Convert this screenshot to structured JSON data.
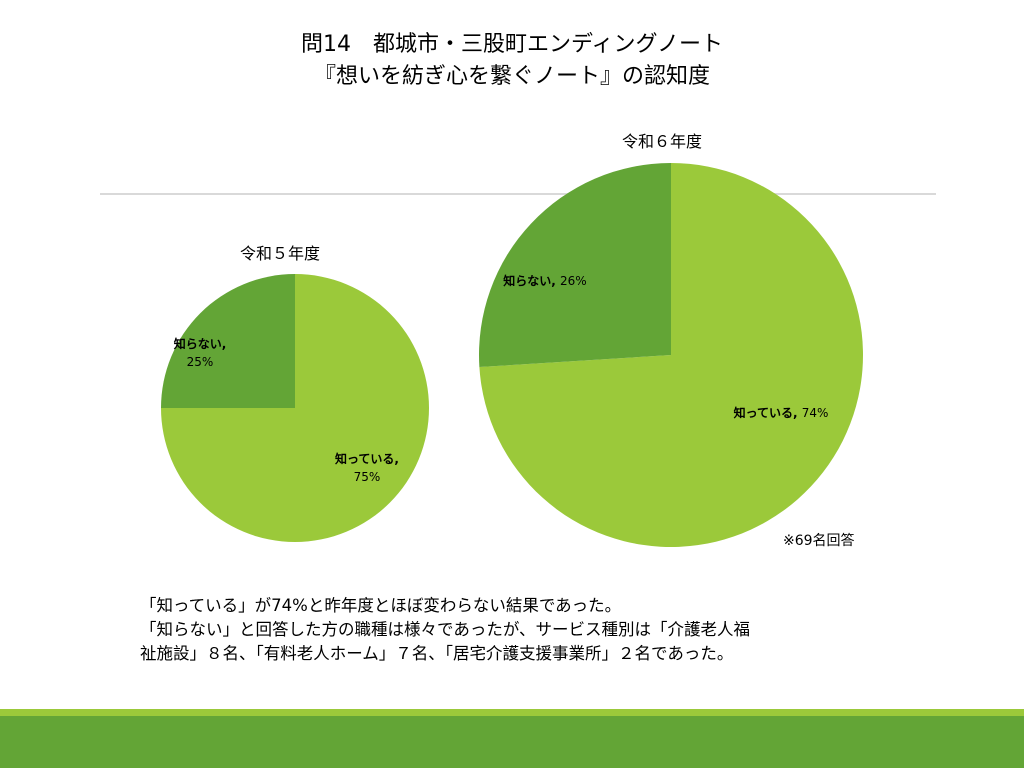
{
  "title": {
    "line1": "問14　都城市・三股町エンディングノート",
    "line2": "『想いを紡ぎ心を繋ぐノート』の認知度"
  },
  "colors": {
    "known": "#9bc93a",
    "unknown": "#63a536"
  },
  "chart_data": [
    {
      "type": "pie",
      "title": "令和５年度",
      "labels": [
        "知っている",
        "知らない"
      ],
      "values": [
        75,
        25
      ],
      "data_labels": [
        "知っている, 75%",
        "知らない, 25%"
      ]
    },
    {
      "type": "pie",
      "title": "令和６年度",
      "labels": [
        "知っている",
        "知らない"
      ],
      "values": [
        74,
        26
      ],
      "data_labels": [
        "知っている, 74%",
        "知らない, 26%"
      ]
    }
  ],
  "note": "※69名回答",
  "body": [
    "「知っている」が74%と昨年度とほぼ変わらない結果であった。",
    "「知らない」と回答した方の職種は様々であったが、サービス種別は「介護老人福",
    "祉施設」８名、「有料老人ホーム」７名、「居宅介護支援事業所」２名であった。"
  ]
}
